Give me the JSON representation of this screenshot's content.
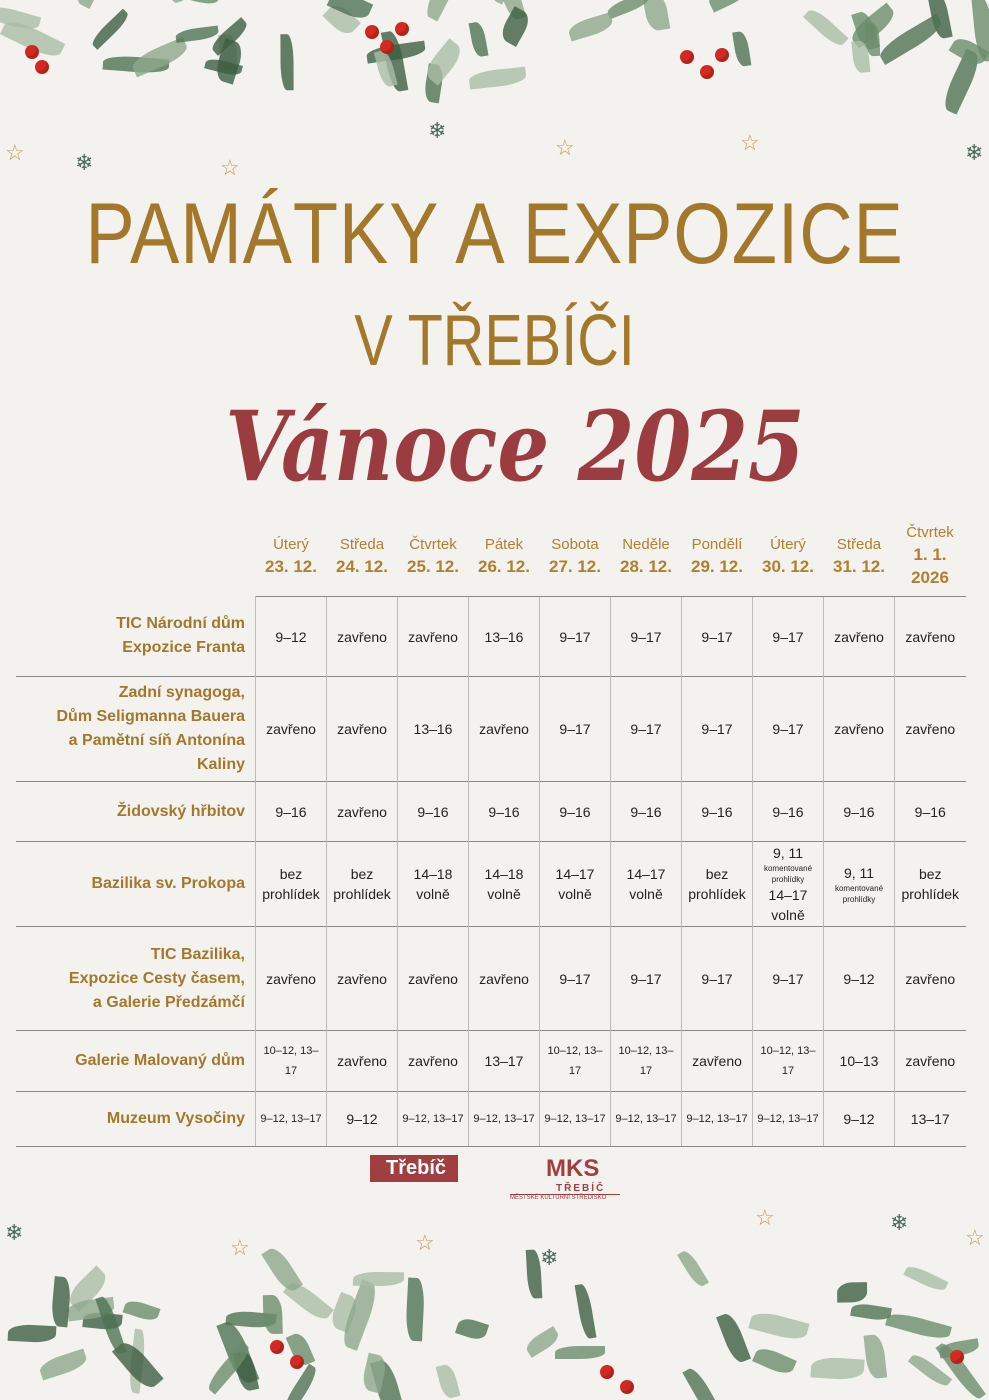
{
  "title": {
    "line1": "PAMÁTKY A EXPOZICE",
    "line2": "V TŘEBÍČI",
    "line3": "Vánoce 2025"
  },
  "days": [
    {
      "name": "Úterý",
      "date": "23. 12."
    },
    {
      "name": "Středa",
      "date": "24. 12."
    },
    {
      "name": "Čtvrtek",
      "date": "25. 12."
    },
    {
      "name": "Pátek",
      "date": "26. 12."
    },
    {
      "name": "Sobota",
      "date": "27. 12."
    },
    {
      "name": "Neděle",
      "date": "28. 12."
    },
    {
      "name": "Pondělí",
      "date": "29. 12."
    },
    {
      "name": "Úterý",
      "date": "30. 12."
    },
    {
      "name": "Středa",
      "date": "31. 12."
    },
    {
      "name": "Čtvrtek",
      "date": "1. 1. 2026"
    }
  ],
  "rows": [
    {
      "name": [
        "TIC Národní dům",
        "Expozice Franta"
      ],
      "cells": [
        "9–12",
        "zavřeno",
        "zavřeno",
        "13–16",
        "9–17",
        "9–17",
        "9–17",
        "9–17",
        "zavřeno",
        "zavřeno"
      ]
    },
    {
      "name": [
        "Zadní synagoga,",
        "Dům Seligmanna Bauera",
        "a Pamětní síň Antonína Kaliny"
      ],
      "cells": [
        "zavřeno",
        "zavřeno",
        "13–16",
        "zavřeno",
        "9–17",
        "9–17",
        "9–17",
        "9–17",
        "zavřeno",
        "zavřeno"
      ]
    },
    {
      "name": [
        "Židovský hřbitov"
      ],
      "cells": [
        "9–16",
        "zavřeno",
        "9–16",
        "9–16",
        "9–16",
        "9–16",
        "9–16",
        "9–16",
        "9–16",
        "9–16"
      ]
    },
    {
      "name": [
        "Bazilika sv. Prokopa"
      ],
      "cells": [
        "bez prohlídek",
        "bez prohlídek",
        "14–18 volně",
        "14–18 volně",
        "14–17 volně",
        "14–17 volně",
        "bez prohlídek",
        "9, 11|komentované prohlídky|14–17 volně",
        "9, 11|komentované prohlídky",
        "bez prohlídek"
      ]
    },
    {
      "name": [
        "TIC Bazilika,",
        "Expozice Cesty časem,",
        "a Galerie Předzámčí"
      ],
      "cells": [
        "zavřeno",
        "zavřeno",
        "zavřeno",
        "zavřeno",
        "9–17",
        "9–17",
        "9–17",
        "9–17",
        "9–12",
        "zavřeno"
      ]
    },
    {
      "name": [
        "Galerie Malovaný dům"
      ],
      "cells": [
        "10–12, 13–17",
        "zavřeno",
        "zavřeno",
        "13–17",
        "10–12, 13–17",
        "10–12, 13–17",
        "zavřeno",
        "10–12, 13–17",
        "10–13",
        "zavřeno"
      ]
    },
    {
      "name": [
        "Muzeum Vysočiny"
      ],
      "cells": [
        "9–12, 13–17",
        "9–12",
        "9–12, 13–17",
        "9–12, 13–17",
        "9–12, 13–17",
        "9–12, 13–17",
        "9–12, 13–17",
        "9–12, 13–17",
        "9–12",
        "13–17"
      ]
    }
  ],
  "logos": {
    "trebic": "Třebíč",
    "mks": "MKS",
    "mks_city": "TŘEBÍČ",
    "mks_sub": "MĚSTSKÉ KULTURNÍ STŘEDISKO"
  },
  "colors": {
    "gold": "#a4782b",
    "red": "#9b3d40",
    "berry": "#d22a22",
    "leaf": "#5c7d5e"
  }
}
